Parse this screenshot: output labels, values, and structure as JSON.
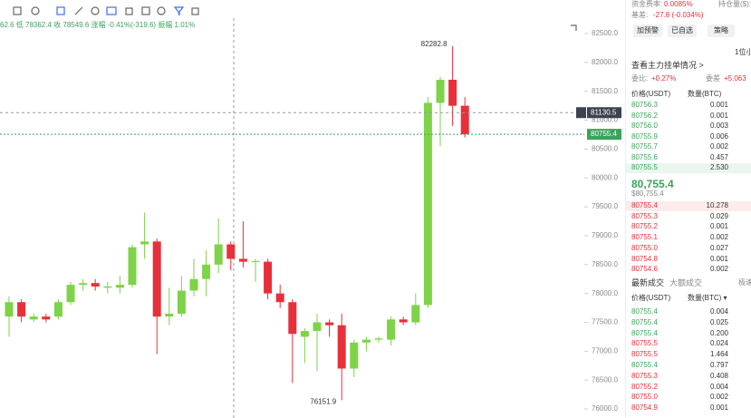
{
  "header": {
    "ohlc_line": "62.6 低 78362.4 收 78549.6 涨幅 -0.41%(-319.6) 振幅 1.01%"
  },
  "chart_data": {
    "type": "candlestick",
    "open": [
      77600,
      77850,
      77550,
      77600,
      77600,
      77850,
      78150,
      78180,
      78100,
      78100,
      78150,
      78850,
      78900,
      77600,
      77650,
      78050,
      78250,
      78500,
      78850,
      78600,
      78550,
      78550,
      78000,
      77850,
      77250,
      77350,
      77500,
      77450,
      76700,
      77150,
      77200,
      77200,
      77550,
      77500,
      77800,
      81300,
      81700,
      81250
    ],
    "high": [
      77950,
      77900,
      77650,
      77650,
      77900,
      78200,
      78250,
      78250,
      78200,
      78300,
      78850,
      79400,
      78950,
      78100,
      78300,
      78600,
      78750,
      79300,
      78900,
      79250,
      78600,
      78600,
      78150,
      77900,
      77400,
      77650,
      77550,
      77650,
      77200,
      77250,
      77250,
      77600,
      77600,
      78000,
      81400,
      81750,
      82282.8,
      81400
    ],
    "low": [
      77250,
      77500,
      77500,
      77500,
      77550,
      77800,
      78050,
      78050,
      78000,
      78000,
      78100,
      78600,
      76950,
      77450,
      77600,
      77950,
      77950,
      78350,
      78400,
      78450,
      78200,
      77900,
      77750,
      76450,
      76800,
      76650,
      77250,
      76151.9,
      76550,
      77000,
      77150,
      77100,
      77450,
      77450,
      77750,
      80550,
      80900,
      80700
    ],
    "close": [
      77850,
      77600,
      77600,
      77550,
      77850,
      78150,
      78180,
      78120,
      78120,
      78150,
      78800,
      78900,
      77600,
      77650,
      78050,
      78250,
      78500,
      78850,
      78600,
      78550,
      78560,
      78000,
      77850,
      77300,
      77350,
      77500,
      77450,
      76700,
      77150,
      77200,
      77220,
      77550,
      77500,
      77800,
      81300,
      81700,
      81250,
      80755.4
    ],
    "up_color": "#7ed348",
    "down_color": "#e8303a",
    "ylim": [
      75950,
      82650
    ],
    "yticks": [
      {
        "value": 76000,
        "label": "76000.0"
      },
      {
        "value": 76500,
        "label": "76500.0"
      },
      {
        "value": 77000,
        "label": "77000.0"
      },
      {
        "value": 77500,
        "label": "77500.0"
      },
      {
        "value": 78000,
        "label": "78000.0"
      },
      {
        "value": 78500,
        "label": "78500.0"
      },
      {
        "value": 79000,
        "label": "79000.0"
      },
      {
        "value": 79500,
        "label": "79500.0"
      },
      {
        "value": 80000,
        "label": "80000.0"
      },
      {
        "value": 80500,
        "label": "80500.0"
      },
      {
        "value": 81000,
        "label": "81000.0"
      },
      {
        "value": 81500,
        "label": "81500.0"
      },
      {
        "value": 82000,
        "label": "82000.0"
      },
      {
        "value": 82500,
        "label": "82500.0"
      }
    ],
    "high_marker": {
      "value": 82282.8,
      "label": "82282.8"
    },
    "low_marker": {
      "value": 76151.9,
      "label": "76151.9"
    },
    "crosshair": {
      "value": 81130.5,
      "label": "81130.5"
    },
    "last_price": {
      "value": 80755.4,
      "label": "80755.4"
    }
  },
  "panel": {
    "funding_label": "资金费率:",
    "funding_value": "0.0085%",
    "oi_label": "持仓量($):",
    "basis_label": "基差:",
    "basis_value": "-27.8 (-0.034%)",
    "buttons": [
      "加预警",
      "已自选",
      "策略"
    ],
    "precision": "1位小",
    "main_orders": "查看主力挂单情况 >",
    "ratio_label": "委比:",
    "ratio_value": "+0.27%",
    "diff_label": "委差",
    "diff_value": "+5.063",
    "book_headers": [
      "价格(USDT)",
      "数量(BTC)"
    ],
    "asks": [
      [
        "80756.3",
        "0.001"
      ],
      [
        "80756.2",
        "0.001"
      ],
      [
        "80756.0",
        "0.003"
      ],
      [
        "80755.9",
        "0.006"
      ],
      [
        "80755.7",
        "0.002"
      ],
      [
        "80755.6",
        "0.457"
      ],
      [
        "80755.5",
        "2.530"
      ]
    ],
    "mid_price": "80,755.4",
    "mid_usd": "$80,755.4",
    "bids": [
      [
        "80755.4",
        "10.278"
      ],
      [
        "80755.3",
        "0.029"
      ],
      [
        "80755.2",
        "0.001"
      ],
      [
        "80755.1",
        "0.002"
      ],
      [
        "80755.0",
        "0.027"
      ],
      [
        "80754.8",
        "0.001"
      ],
      [
        "80754.6",
        "0.002"
      ]
    ],
    "trade_tabs": [
      "最新成交",
      "大额成交"
    ],
    "fast": "极速",
    "trade_headers": [
      "价格(USDT)",
      "数量(BTC) ▾"
    ],
    "trades": [
      [
        "80755.4",
        "0.004"
      ],
      [
        "80755.4",
        "0.025"
      ],
      [
        "80755.4",
        "0.200"
      ],
      [
        "80755.5",
        "0.024"
      ],
      [
        "80755.5",
        "1.464"
      ],
      [
        "80755.4",
        "0.797"
      ],
      [
        "80755.3",
        "0.408"
      ],
      [
        "80755.2",
        "0.004"
      ],
      [
        "80755.0",
        "0.002"
      ],
      [
        "80754.9",
        "0.001"
      ]
    ],
    "trade_sides": [
      "buy",
      "buy",
      "buy",
      "sell",
      "sell",
      "buy",
      "sell",
      "sell",
      "sell",
      "sell"
    ]
  }
}
